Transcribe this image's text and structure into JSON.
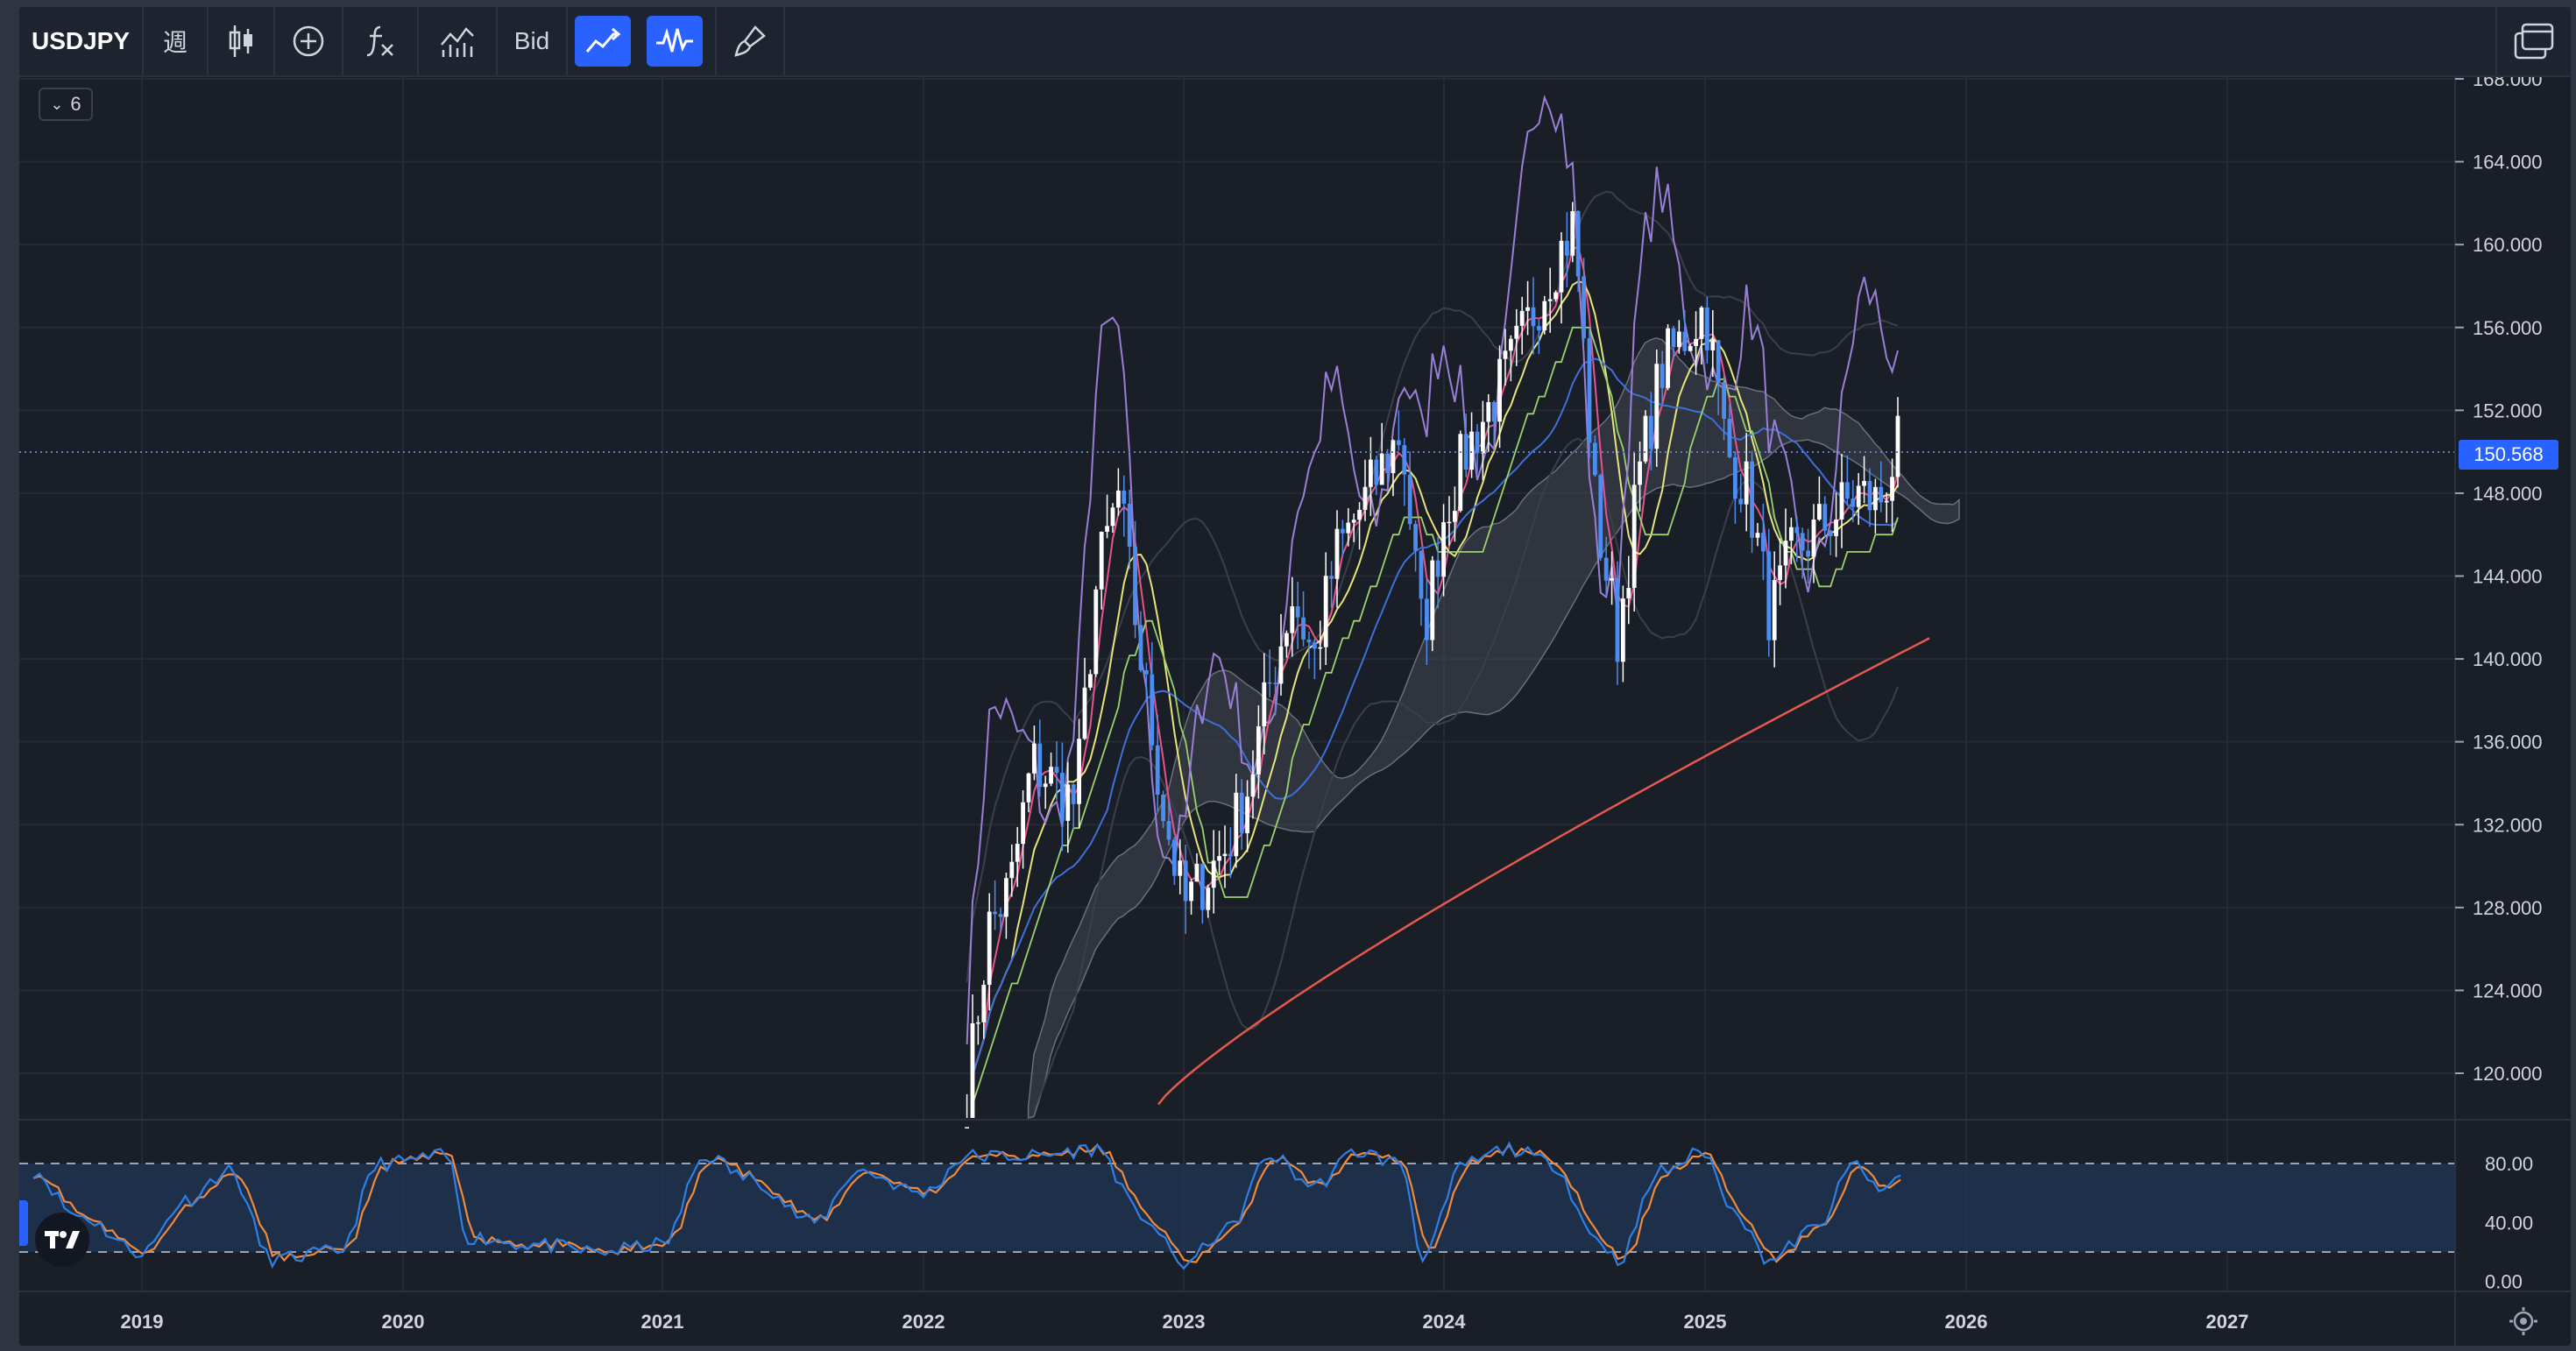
{
  "toolbar": {
    "symbol": "USDJPY",
    "interval": "週",
    "price_type": "Bid",
    "buttons": [
      "candle-type-icon",
      "add-compare-icon",
      "indicators-icon",
      "bar-chart-icon",
      "price-type",
      "line-tool-icon",
      "oscillator-icon",
      "brush-icon"
    ],
    "right_icon": "layout-icon"
  },
  "legend_toggle": {
    "label": "6"
  },
  "price_axis": {
    "ticks": [
      "168.000",
      "164.000",
      "160.000",
      "156.000",
      "152.000",
      "148.000",
      "144.000",
      "140.000",
      "136.000",
      "132.000",
      "128.000",
      "124.000",
      "120.000"
    ],
    "current_price": "150.568"
  },
  "time_axis": {
    "ticks": [
      "2019",
      "2020",
      "2021",
      "2022",
      "2023",
      "2024",
      "2025",
      "2026",
      "2027"
    ]
  },
  "oscillator": {
    "ticks": [
      "80.00",
      "40.00",
      "0.00"
    ],
    "upper_band": 80,
    "lower_band": 20
  },
  "colors": {
    "background": "#1a1e27",
    "up_candle": "#ffffff",
    "down_candle": "#4d8cf0",
    "sma_red": "#e55a4f",
    "sma_blue": "#3f6fd8",
    "line_yellow": "#e8e57a",
    "line_green": "#9bd36e",
    "line_pink": "#e8548a",
    "line_purple": "#9a7fd6",
    "stoch_k": "#2f7fe5",
    "stoch_d": "#f08a3c"
  },
  "chart_data": {
    "type": "candlestick",
    "symbol": "USDJPY",
    "interval": "weekly",
    "ylim": [
      118,
      169
    ],
    "x_range": [
      "2018-08",
      "2027-12"
    ],
    "close_series": [
      {
        "date": "2022-03",
        "value": 119
      },
      {
        "date": "2022-04",
        "value": 127
      },
      {
        "date": "2022-05",
        "value": 129
      },
      {
        "date": "2022-06",
        "value": 135
      },
      {
        "date": "2022-08",
        "value": 133
      },
      {
        "date": "2022-09",
        "value": 144
      },
      {
        "date": "2022-10",
        "value": 148
      },
      {
        "date": "2022-11",
        "value": 140
      },
      {
        "date": "2022-12",
        "value": 133
      },
      {
        "date": "2023-01",
        "value": 128
      },
      {
        "date": "2023-03",
        "value": 131
      },
      {
        "date": "2023-04",
        "value": 134
      },
      {
        "date": "2023-05",
        "value": 139
      },
      {
        "date": "2023-06",
        "value": 143
      },
      {
        "date": "2023-07",
        "value": 140
      },
      {
        "date": "2023-08",
        "value": 145
      },
      {
        "date": "2023-10",
        "value": 149
      },
      {
        "date": "2023-11",
        "value": 151
      },
      {
        "date": "2023-12",
        "value": 141
      },
      {
        "date": "2024-01",
        "value": 147
      },
      {
        "date": "2024-02",
        "value": 150
      },
      {
        "date": "2024-04",
        "value": 154
      },
      {
        "date": "2024-06",
        "value": 159
      },
      {
        "date": "2024-07",
        "value": 161
      },
      {
        "date": "2024-08",
        "value": 147
      },
      {
        "date": "2024-09",
        "value": 141
      },
      {
        "date": "2024-10",
        "value": 149
      },
      {
        "date": "2024-11",
        "value": 154
      },
      {
        "date": "2025-01",
        "value": 157
      },
      {
        "date": "2025-02",
        "value": 150
      },
      {
        "date": "2025-03",
        "value": 148
      },
      {
        "date": "2025-04",
        "value": 142
      },
      {
        "date": "2025-05",
        "value": 145
      },
      {
        "date": "2025-07",
        "value": 147
      },
      {
        "date": "2025-08",
        "value": 148
      },
      {
        "date": "2025-09",
        "value": 147.5
      },
      {
        "date": "2025-10",
        "value": 150.568
      }
    ],
    "oscillator_k": [
      {
        "date": "2018-08",
        "value": 75
      },
      {
        "date": "2018-10",
        "value": 45
      },
      {
        "date": "2019-01",
        "value": 20
      },
      {
        "date": "2019-03",
        "value": 55
      },
      {
        "date": "2019-05",
        "value": 75
      },
      {
        "date": "2019-07",
        "value": 15
      },
      {
        "date": "2019-10",
        "value": 20
      },
      {
        "date": "2019-12",
        "value": 80
      },
      {
        "date": "2020-03",
        "value": 85
      },
      {
        "date": "2020-04",
        "value": 30
      },
      {
        "date": "2020-07",
        "value": 25
      },
      {
        "date": "2020-10",
        "value": 20
      },
      {
        "date": "2021-01",
        "value": 25
      },
      {
        "date": "2021-03",
        "value": 85
      },
      {
        "date": "2021-05",
        "value": 70
      },
      {
        "date": "2021-08",
        "value": 40
      },
      {
        "date": "2021-10",
        "value": 75
      },
      {
        "date": "2022-01",
        "value": 60
      },
      {
        "date": "2022-03",
        "value": 85
      },
      {
        "date": "2022-06",
        "value": 85
      },
      {
        "date": "2022-09",
        "value": 90
      },
      {
        "date": "2022-11",
        "value": 45
      },
      {
        "date": "2023-01",
        "value": 12
      },
      {
        "date": "2023-03",
        "value": 35
      },
      {
        "date": "2023-05",
        "value": 85
      },
      {
        "date": "2023-07",
        "value": 65
      },
      {
        "date": "2023-09",
        "value": 88
      },
      {
        "date": "2023-11",
        "value": 80
      },
      {
        "date": "2023-12",
        "value": 18
      },
      {
        "date": "2024-02",
        "value": 80
      },
      {
        "date": "2024-04",
        "value": 90
      },
      {
        "date": "2024-06",
        "value": 80
      },
      {
        "date": "2024-08",
        "value": 30
      },
      {
        "date": "2024-09",
        "value": 15
      },
      {
        "date": "2024-11",
        "value": 75
      },
      {
        "date": "2025-01",
        "value": 88
      },
      {
        "date": "2025-02",
        "value": 55
      },
      {
        "date": "2025-04",
        "value": 15
      },
      {
        "date": "2025-06",
        "value": 35
      },
      {
        "date": "2025-08",
        "value": 80
      },
      {
        "date": "2025-09",
        "value": 60
      },
      {
        "date": "2025-10",
        "value": 72
      }
    ]
  }
}
